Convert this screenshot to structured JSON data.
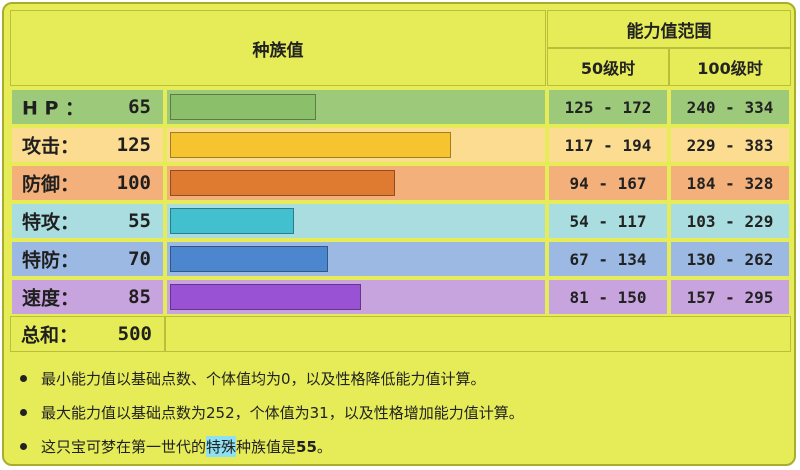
{
  "header": {
    "base_stats": "种族值",
    "range": "能力值范围",
    "lv50": "50级时",
    "lv100": "100级时"
  },
  "stats": [
    {
      "label": "H P ：",
      "value": "65",
      "lv50": "125 - 172",
      "lv100": "240 - 334",
      "fraction": 0.388,
      "row_color": "#9cc97a",
      "bar_color": "#8bbf6a"
    },
    {
      "label": "攻击：",
      "value": "125",
      "lv50": "117 - 194",
      "lv100": "229 - 383",
      "fraction": 0.748,
      "row_color": "#fbdc90",
      "bar_color": "#f6c431"
    },
    {
      "label": "防御：",
      "value": "100",
      "lv50": "94 - 167",
      "lv100": "184 - 328",
      "fraction": 0.598,
      "row_color": "#f4b07a",
      "bar_color": "#df7a31"
    },
    {
      "label": "特攻：",
      "value": "55",
      "lv50": "54 - 117",
      "lv100": "103 - 229",
      "fraction": 0.329,
      "row_color": "#a9dde0",
      "bar_color": "#43c0cf"
    },
    {
      "label": "特防：",
      "value": "70",
      "lv50": "67 - 134",
      "lv100": "130 - 262",
      "fraction": 0.419,
      "row_color": "#9cb9e3",
      "bar_color": "#4c86cf"
    },
    {
      "label": "速度：",
      "value": "85",
      "lv50": "81 - 150",
      "lv100": "157 - 295",
      "fraction": 0.509,
      "row_color": "#c8a4df",
      "bar_color": "#9a52d4"
    }
  ],
  "total": {
    "label": "总和：",
    "value": "500"
  },
  "notes": {
    "n1": "最小能力值以基础点数、个体值均为0，以及性格降低能力值计算。",
    "n2": "最大能力值以基础点数为252，个体值为31，以及性格增加能力值计算。",
    "n3_pre": "这只宝可梦在第一世代的",
    "n3_hl": "特殊",
    "n3_mid": "种族值是",
    "n3_num": "55",
    "n3_end": "。"
  }
}
